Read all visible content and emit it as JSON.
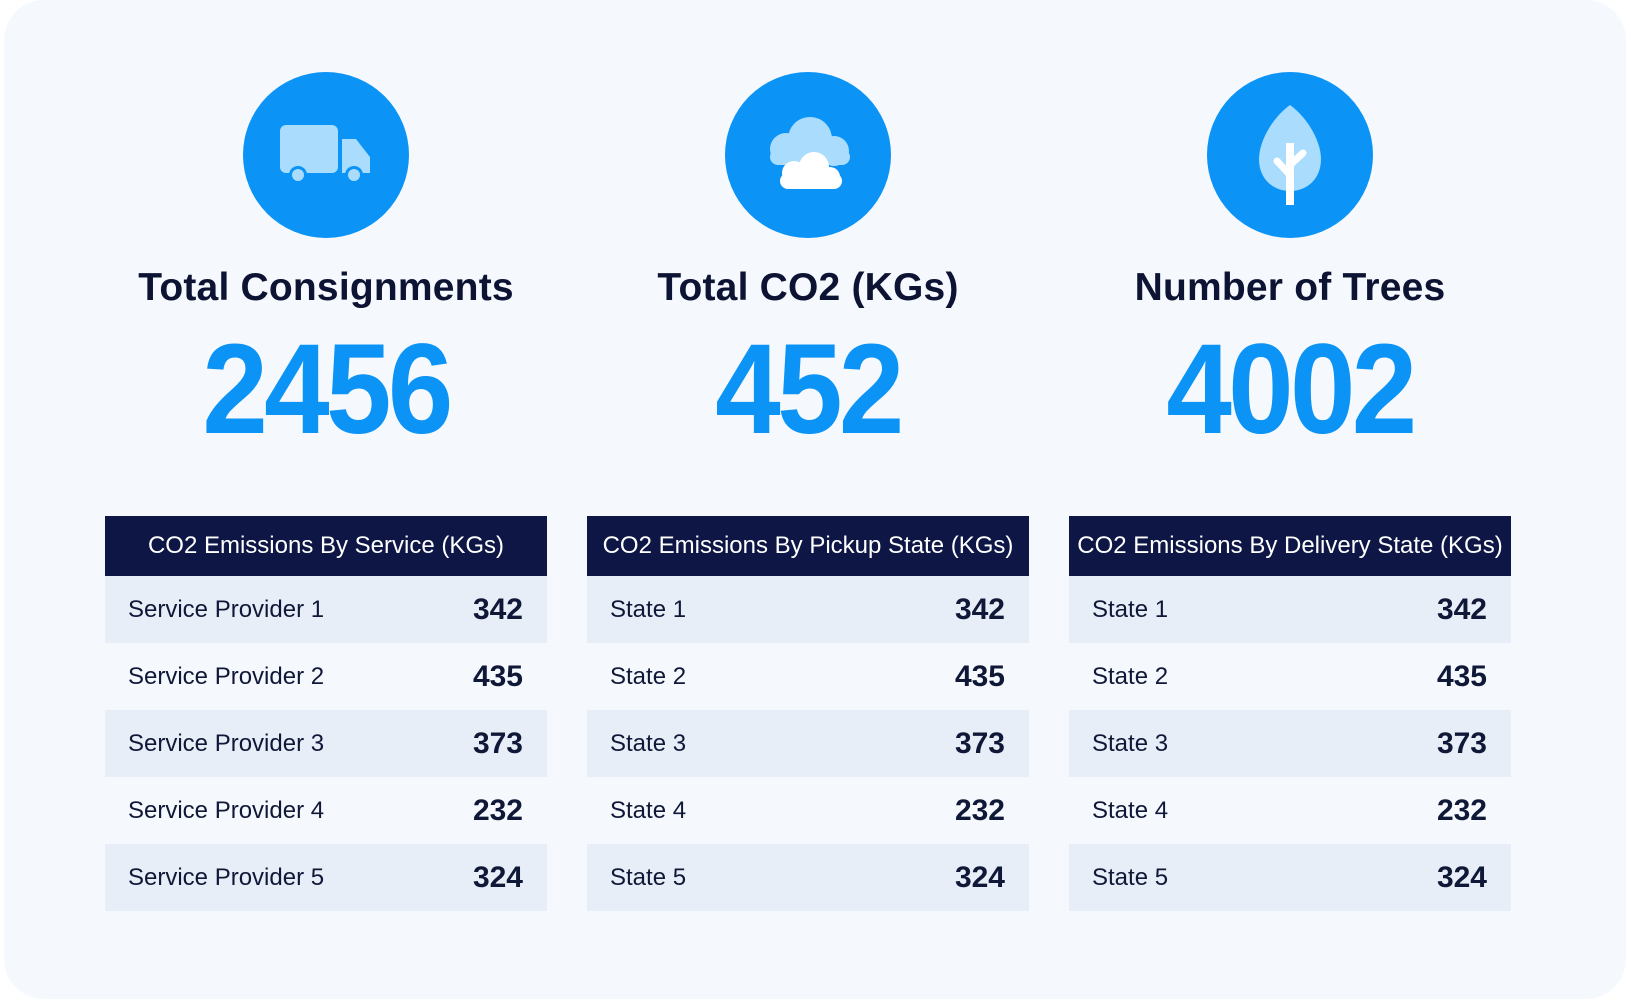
{
  "colors": {
    "accent": "#0b93f6",
    "icon_light": "#a9dcfd",
    "header_bg": "#0d1645",
    "title_text": "#0d1333",
    "row_odd_bg": "#e7eef8",
    "page_bg": "#f5f9fd"
  },
  "kpis": [
    {
      "icon": "truck-icon",
      "label": "Total Consignments",
      "value": "2456"
    },
    {
      "icon": "cloud-icon",
      "label": "Total CO2 (KGs)",
      "value": "452"
    },
    {
      "icon": "tree-icon",
      "label": "Number of Trees",
      "value": "4002"
    }
  ],
  "tables": [
    {
      "title": "CO2 Emissions By Service (KGs)",
      "rows": [
        {
          "label": "Service Provider 1",
          "value": "342"
        },
        {
          "label": "Service Provider 2",
          "value": "435"
        },
        {
          "label": "Service Provider 3",
          "value": "373"
        },
        {
          "label": "Service Provider 4",
          "value": "232"
        },
        {
          "label": "Service Provider 5",
          "value": "324"
        }
      ]
    },
    {
      "title": "CO2 Emissions By Pickup State (KGs)",
      "rows": [
        {
          "label": "State 1",
          "value": "342"
        },
        {
          "label": "State 2",
          "value": "435"
        },
        {
          "label": "State 3",
          "value": "373"
        },
        {
          "label": "State 4",
          "value": "232"
        },
        {
          "label": "State 5",
          "value": "324"
        }
      ]
    },
    {
      "title": "CO2 Emissions By Delivery State (KGs)",
      "rows": [
        {
          "label": "State 1",
          "value": "342"
        },
        {
          "label": "State 2",
          "value": "435"
        },
        {
          "label": "State 3",
          "value": "373"
        },
        {
          "label": "State 4",
          "value": "232"
        },
        {
          "label": "State 5",
          "value": "324"
        }
      ]
    }
  ]
}
